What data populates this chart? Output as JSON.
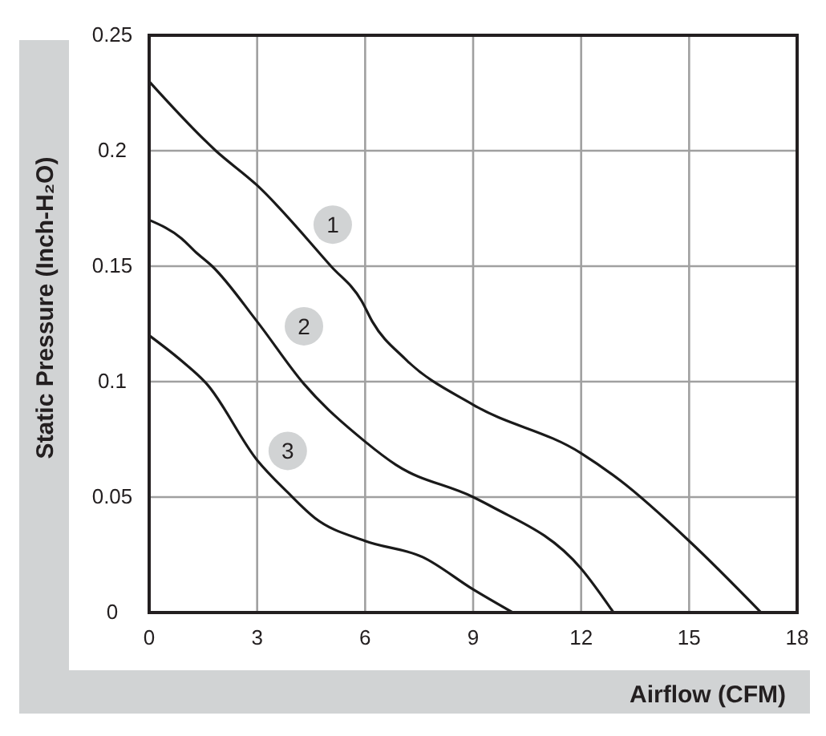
{
  "chart_data": {
    "type": "line",
    "xlabel": "Airflow (CFM)",
    "ylabel": "Static Pressure (Inch-H₂O)",
    "xlim": [
      0,
      18
    ],
    "xticks": [
      0,
      3,
      6,
      9,
      12,
      15,
      18
    ],
    "ylim": [
      0,
      0.25
    ],
    "yticks": [
      0,
      0.05,
      0.1,
      0.15,
      0.2,
      0.25
    ],
    "grid": true,
    "marker": "none",
    "line_style": "solid",
    "series": [
      {
        "color": "#1a1a1a",
        "x": [
          0,
          1.85,
          3,
          5.05,
          5.9,
          6.2,
          7.1,
          9,
          12,
          13.1,
          15,
          17
        ],
        "values": [
          0.23,
          0.2,
          0.185,
          0.15,
          0.135,
          0.126,
          0.11,
          0.09,
          0.069,
          0.057,
          0.031,
          0
        ]
      },
      {
        "color": "#1a1a1a",
        "x": [
          0,
          0.9,
          1.3,
          1.75,
          3,
          4.3,
          6,
          6.85,
          9,
          9.5,
          12,
          12.9
        ],
        "values": [
          0.17,
          0.162,
          0.156,
          0.15,
          0.126,
          0.099,
          0.074,
          0.064,
          0.05,
          0.046,
          0.019,
          0
        ]
      },
      {
        "color": "#1a1a1a",
        "x": [
          0,
          0.9,
          1.6,
          3,
          3.85,
          4.6,
          6,
          7.6,
          9,
          10.1
        ],
        "values": [
          0.12,
          0.109,
          0.099,
          0.066,
          0.052,
          0.041,
          0.031,
          0.024,
          0.01,
          0
        ]
      }
    ],
    "annotations": [
      {
        "text": "1",
        "x": 5.1,
        "y": 0.168
      },
      {
        "text": "2",
        "x": 4.3,
        "y": 0.124
      },
      {
        "text": "3",
        "x": 3.85,
        "y": 0.07
      }
    ]
  }
}
